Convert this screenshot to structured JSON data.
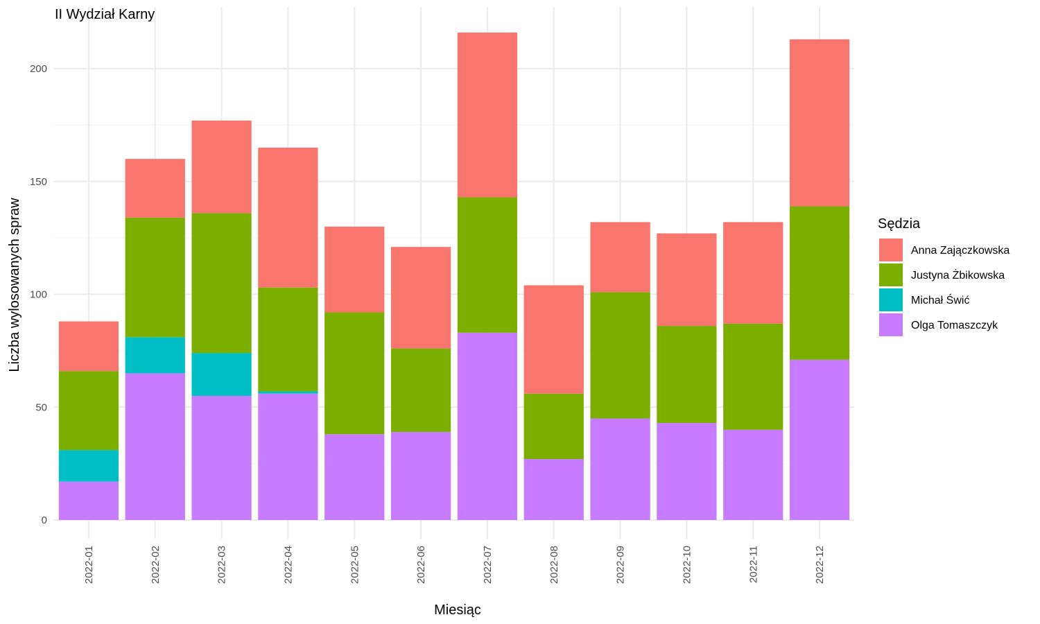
{
  "chart_data": {
    "type": "bar",
    "stacked": true,
    "title": "II Wydział Karny",
    "xlabel": "Miesiąc",
    "ylabel": "Liczba wylosowanych spraw",
    "ylim": [
      0,
      220
    ],
    "yticks": [
      0,
      50,
      100,
      150,
      200
    ],
    "grid": true,
    "legend_title": "Sędzia",
    "legend_position": "right",
    "categories": [
      "2022-01",
      "2022-02",
      "2022-03",
      "2022-04",
      "2022-05",
      "2022-06",
      "2022-07",
      "2022-08",
      "2022-09",
      "2022-10",
      "2022-11",
      "2022-12"
    ],
    "series": [
      {
        "name": "Olga Tomaszczyk",
        "color": "#C77CFF",
        "values": [
          17,
          65,
          55,
          56,
          38,
          39,
          83,
          27,
          45,
          43,
          40,
          71
        ]
      },
      {
        "name": "Michał Świć",
        "color": "#00BFC4",
        "values": [
          14,
          16,
          19,
          1,
          0,
          0,
          0,
          0,
          0,
          0,
          0,
          0
        ]
      },
      {
        "name": "Justyna Żbikowska",
        "color": "#7CAE00",
        "values": [
          35,
          53,
          62,
          46,
          54,
          37,
          60,
          29,
          56,
          43,
          47,
          68
        ]
      },
      {
        "name": "Anna Zajączkowska",
        "color": "#F8766D",
        "values": [
          22,
          26,
          41,
          62,
          38,
          45,
          73,
          48,
          31,
          41,
          45,
          74
        ]
      }
    ],
    "legend_order": [
      "Anna Zajączkowska",
      "Justyna Żbikowska",
      "Michał Świć",
      "Olga Tomaszczyk"
    ]
  }
}
